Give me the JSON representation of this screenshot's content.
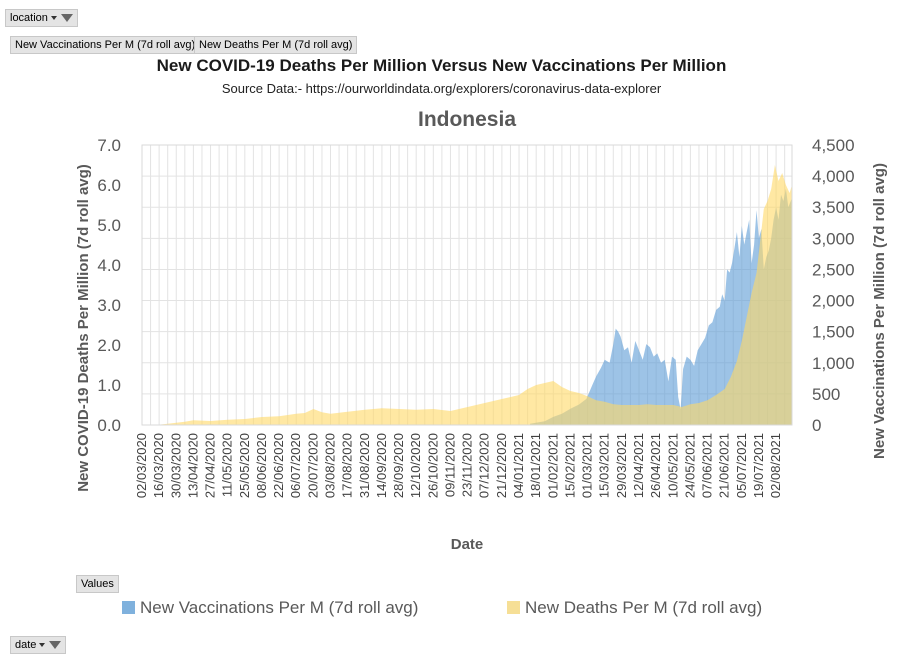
{
  "pivot": {
    "location_label": "location",
    "values_label": "Values",
    "date_label": "date",
    "series_buttons": [
      "New Vaccinations Per M (7d roll avg)",
      "New Deaths Per M (7d roll avg)"
    ]
  },
  "header": {
    "title": "New COVID-19 Deaths Per Million  Versus  New Vaccinations  Per Million",
    "subtitle": "Source Data:- https://ourworldindata.org/explorers/coronavirus-data-explorer"
  },
  "chart_data": {
    "type": "area",
    "title": "Indonesia",
    "xlabel": "Date",
    "ylabel_left": "New COVID-19 Deaths Per Million (7d roll avg)",
    "ylabel_right": "New Vaccinations Per Million (7d roll avg)",
    "ylim_left": [
      0,
      7
    ],
    "ylim_right": [
      0,
      4500
    ],
    "yticks_left": [
      "0.0",
      "1.0",
      "2.0",
      "3.0",
      "4.0",
      "5.0",
      "6.0",
      "7.0"
    ],
    "yticks_right": [
      "0",
      "500",
      "1,000",
      "1,500",
      "2,000",
      "2,500",
      "3,000",
      "3,500",
      "4,000",
      "4,500"
    ],
    "xticks": [
      "02/03/2020",
      "16/03/2020",
      "30/03/2020",
      "13/04/2020",
      "27/04/2020",
      "11/05/2020",
      "25/05/2020",
      "08/06/2020",
      "22/06/2020",
      "06/07/2020",
      "20/07/2020",
      "03/08/2020",
      "17/08/2020",
      "31/08/2020",
      "14/09/2020",
      "28/09/2020",
      "12/10/2020",
      "26/10/2020",
      "09/11/2020",
      "23/11/2020",
      "07/12/2020",
      "21/12/2020",
      "04/01/2021",
      "18/01/2021",
      "01/02/2021",
      "15/02/2021",
      "01/03/2021",
      "15/03/2021",
      "29/03/2021",
      "12/04/2021",
      "26/04/2021",
      "10/05/2021",
      "24/05/2021",
      "07/06/2021",
      "21/06/2021",
      "05/07/2021",
      "19/07/2021",
      "02/08/2021"
    ],
    "x_range": [
      "02/03/2020",
      "15/08/2021"
    ],
    "grid": true,
    "legend_position": "bottom",
    "series": [
      {
        "name": "New Vaccinations Per M (7d roll avg)",
        "axis": "right",
        "color": "#5b9bd5",
        "x": [
          "13/01/2021",
          "25/01/2021",
          "01/02/2021",
          "08/02/2021",
          "15/02/2021",
          "22/02/2021",
          "28/02/2021",
          "05/03/2021",
          "08/03/2021",
          "12/03/2021",
          "15/03/2021",
          "19/03/2021",
          "22/03/2021",
          "24/03/2021",
          "26/03/2021",
          "28/03/2021",
          "31/03/2021",
          "03/04/2021",
          "06/04/2021",
          "09/04/2021",
          "12/04/2021",
          "15/04/2021",
          "18/04/2021",
          "21/04/2021",
          "24/04/2021",
          "27/04/2021",
          "30/04/2021",
          "03/05/2021",
          "06/05/2021",
          "09/05/2021",
          "12/05/2021",
          "14/05/2021",
          "16/05/2021",
          "18/05/2021",
          "21/05/2021",
          "24/05/2021",
          "27/05/2021",
          "30/05/2021",
          "02/06/2021",
          "05/06/2021",
          "08/06/2021",
          "11/06/2021",
          "14/06/2021",
          "17/06/2021",
          "19/06/2021",
          "21/06/2021",
          "23/06/2021",
          "25/06/2021",
          "27/06/2021",
          "29/06/2021",
          "01/07/2021",
          "03/07/2021",
          "05/07/2021",
          "07/07/2021",
          "09/07/2021",
          "11/07/2021",
          "13/07/2021",
          "15/07/2021",
          "17/07/2021",
          "19/07/2021",
          "21/07/2021",
          "23/07/2021",
          "25/07/2021",
          "27/07/2021",
          "29/07/2021",
          "31/07/2021",
          "02/08/2021",
          "04/08/2021",
          "06/08/2021",
          "08/08/2021",
          "10/08/2021",
          "12/08/2021",
          "15/08/2021"
        ],
        "values": [
          20,
          60,
          130,
          180,
          260,
          330,
          420,
          650,
          780,
          920,
          1050,
          1000,
          1300,
          1550,
          1500,
          1420,
          1200,
          1250,
          1000,
          1350,
          1200,
          1050,
          1300,
          1250,
          1100,
          1150,
          1000,
          1050,
          700,
          1100,
          1050,
          450,
          250,
          900,
          1100,
          1050,
          950,
          1200,
          1300,
          1400,
          1600,
          1650,
          1850,
          1900,
          2100,
          2000,
          2500,
          2450,
          2600,
          2850,
          3100,
          2700,
          3200,
          2900,
          3100,
          3300,
          2600,
          2900,
          3450,
          3000,
          3150,
          2500,
          2700,
          2800,
          3000,
          3300,
          3500,
          3300,
          3700,
          3600,
          3800,
          3500,
          3650
        ]
      },
      {
        "name": "New Deaths Per M (7d roll avg)",
        "axis": "left",
        "color": "#ffd966",
        "x": [
          "02/03/2020",
          "16/03/2020",
          "23/03/2020",
          "06/04/2020",
          "13/04/2020",
          "27/04/2020",
          "11/05/2020",
          "25/05/2020",
          "08/06/2020",
          "22/06/2020",
          "06/07/2020",
          "13/07/2020",
          "20/07/2020",
          "27/07/2020",
          "03/08/2020",
          "17/08/2020",
          "31/08/2020",
          "14/09/2020",
          "28/09/2020",
          "12/10/2020",
          "26/10/2020",
          "09/11/2020",
          "23/11/2020",
          "07/12/2020",
          "21/12/2020",
          "04/01/2021",
          "11/01/2021",
          "18/01/2021",
          "25/01/2021",
          "01/02/2021",
          "08/02/2021",
          "15/02/2021",
          "22/02/2021",
          "01/03/2021",
          "08/03/2021",
          "15/03/2021",
          "22/03/2021",
          "29/03/2021",
          "05/04/2021",
          "12/04/2021",
          "19/04/2021",
          "26/04/2021",
          "03/05/2021",
          "10/05/2021",
          "17/05/2021",
          "24/05/2021",
          "31/05/2021",
          "07/06/2021",
          "14/06/2021",
          "21/06/2021",
          "26/06/2021",
          "01/07/2021",
          "05/07/2021",
          "09/07/2021",
          "13/07/2021",
          "17/07/2021",
          "20/07/2021",
          "23/07/2021",
          "26/07/2021",
          "29/07/2021",
          "01/08/2021",
          "04/08/2021",
          "07/08/2021",
          "10/08/2021",
          "13/08/2021",
          "15/08/2021"
        ],
        "values": [
          0.0,
          0.01,
          0.03,
          0.08,
          0.12,
          0.1,
          0.13,
          0.15,
          0.2,
          0.22,
          0.28,
          0.3,
          0.4,
          0.32,
          0.28,
          0.33,
          0.38,
          0.42,
          0.4,
          0.38,
          0.4,
          0.35,
          0.45,
          0.55,
          0.65,
          0.75,
          0.9,
          1.0,
          1.05,
          1.1,
          0.95,
          0.85,
          0.8,
          0.72,
          0.62,
          0.58,
          0.52,
          0.5,
          0.5,
          0.5,
          0.52,
          0.5,
          0.5,
          0.5,
          0.45,
          0.52,
          0.55,
          0.62,
          0.75,
          0.9,
          1.2,
          1.6,
          2.1,
          2.7,
          3.3,
          3.8,
          4.6,
          5.4,
          5.6,
          5.9,
          6.5,
          6.1,
          6.3,
          6.0,
          5.8,
          6.0
        ]
      }
    ]
  }
}
